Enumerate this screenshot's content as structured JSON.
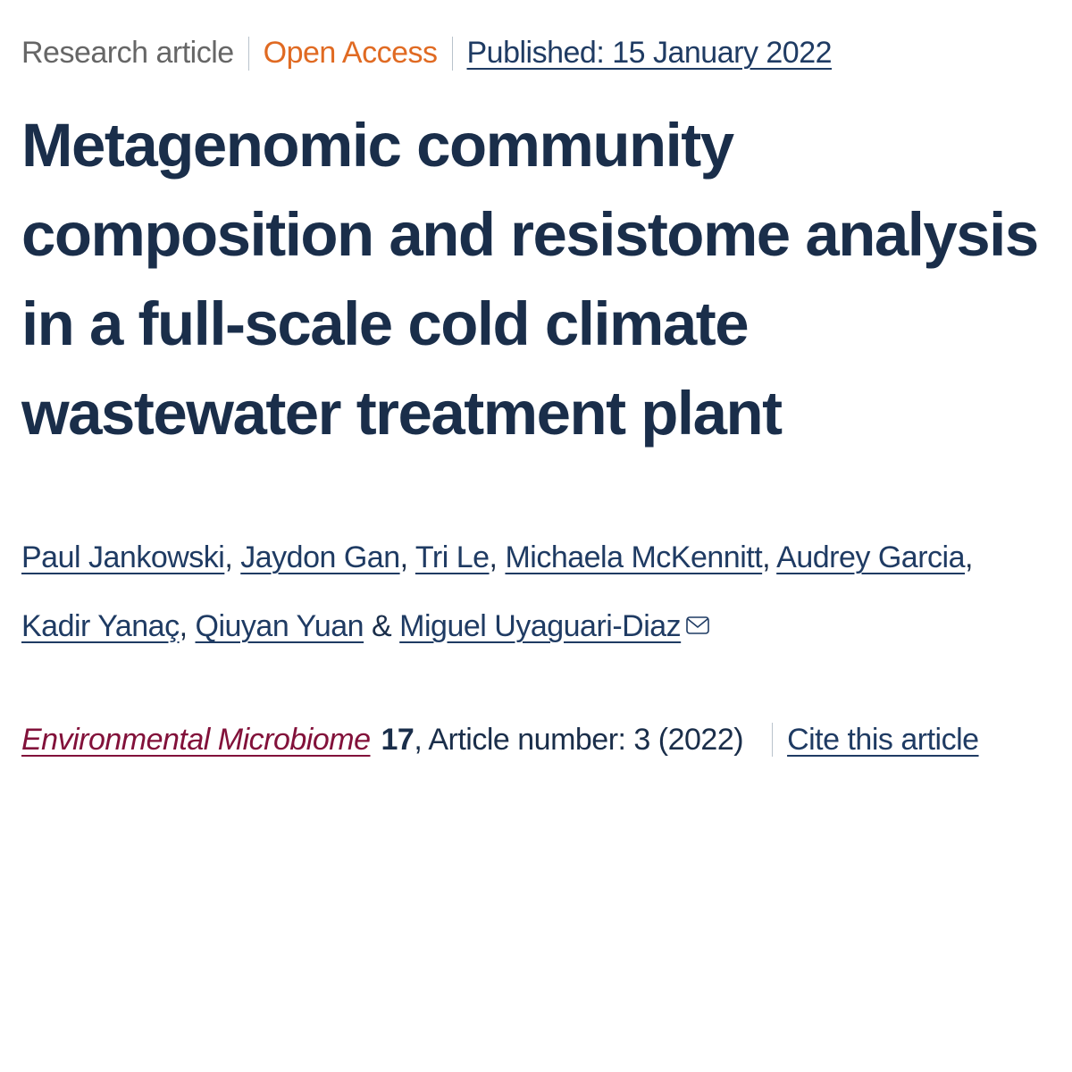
{
  "meta": {
    "type": "Research article",
    "access": "Open Access",
    "published": "Published: 15 January 2022"
  },
  "title": "Metagenomic community composition and resistome analysis in a full-scale cold climate wastewater treatment plant",
  "authors": [
    "Paul Jankowski",
    "Jaydon Gan",
    "Tri Le",
    "Michaela McKennitt",
    "Audrey Garcia",
    "Kadir Yanaç",
    "Qiuyan Yuan",
    "Miguel Uyaguari-Diaz"
  ],
  "corresponding_index": 7,
  "citation": {
    "journal": "Environmental Microbiome",
    "volume": "17",
    "article_number_label": ", Article number: 3 (2022)",
    "cite_label": "Cite this article"
  },
  "colors": {
    "text_dark": "#1a2e4a",
    "link_blue": "#1f3b63",
    "muted": "#666666",
    "accent_orange": "#e06a22",
    "journal_maroon": "#82113a",
    "divider": "#b9c3cc",
    "background": "#ffffff"
  }
}
